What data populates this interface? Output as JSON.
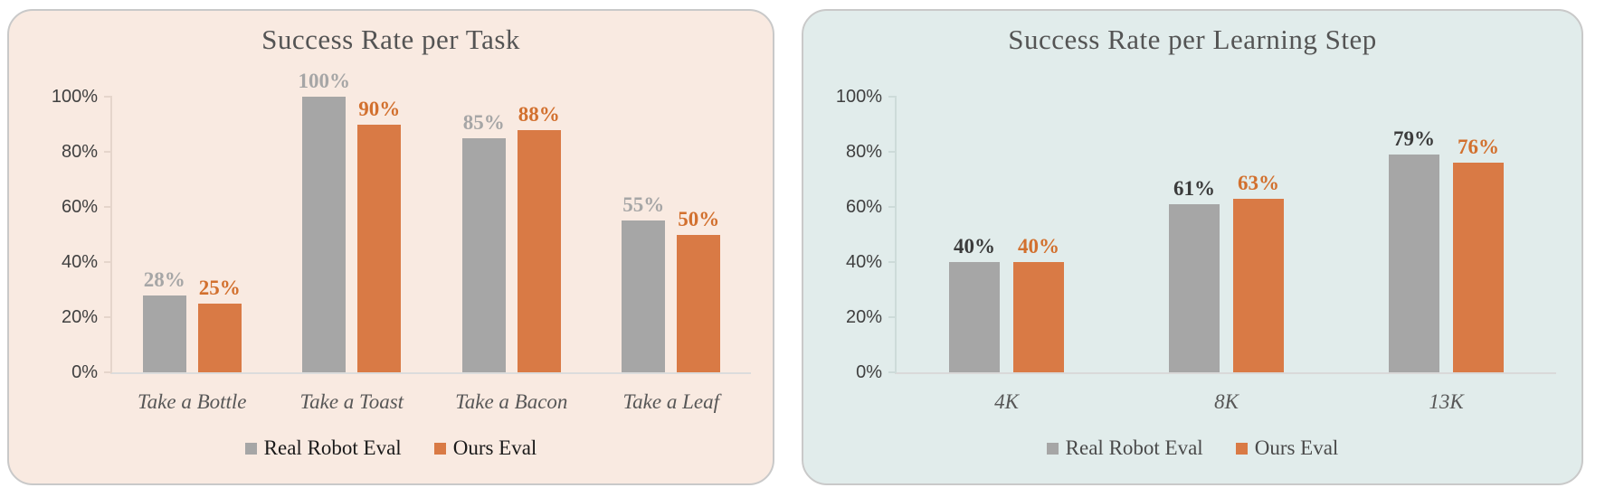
{
  "page": {
    "background": "#ffffff",
    "panel_border_color": "#c9c9c9"
  },
  "chart_data": [
    {
      "type": "bar",
      "title": "Success Rate per Task",
      "panel_bg": "#f9eae1",
      "axis_color": "#e5d5cb",
      "baseline_color": "#dcdcdc",
      "categories": [
        "Take a Bottle",
        "Take a Toast",
        "Take a Bacon",
        "Take a Leaf"
      ],
      "series": [
        {
          "name": "Real Robot Eval",
          "color": "#a6a6a6",
          "label_color": "#a6a6a6",
          "values": [
            28,
            100,
            85,
            55
          ]
        },
        {
          "name": "Ours Eval",
          "color": "#d97a45",
          "label_color": "#d2702e",
          "values": [
            25,
            90,
            88,
            50
          ]
        }
      ],
      "y_tick_labels": [
        "0%",
        "20%",
        "40%",
        "60%",
        "80%",
        "100%"
      ],
      "y_tick_values": [
        0,
        20,
        40,
        60,
        80,
        100
      ],
      "ylim": [
        0,
        100
      ],
      "data_label_suffix": "%",
      "grid": false,
      "legend_position": "bottom",
      "legend_text_color": "#1a1a1a"
    },
    {
      "type": "bar",
      "title": "Success Rate per Learning Step",
      "panel_bg": "#e1eceb",
      "axis_color": "#cddbd9",
      "baseline_color": "#d9d9d9",
      "categories": [
        "4K",
        "8K",
        "13K"
      ],
      "series": [
        {
          "name": "Real Robot Eval",
          "color": "#a6a6a6",
          "label_color": "#3b3b3b",
          "values": [
            40,
            61,
            79
          ]
        },
        {
          "name": "Ours Eval",
          "color": "#d97a45",
          "label_color": "#d2702e",
          "values": [
            40,
            63,
            76
          ]
        }
      ],
      "y_tick_labels": [
        "0%",
        "20%",
        "40%",
        "60%",
        "80%",
        "100%"
      ],
      "y_tick_values": [
        0,
        20,
        40,
        60,
        80,
        100
      ],
      "ylim": [
        0,
        100
      ],
      "data_label_suffix": "%",
      "grid": false,
      "legend_position": "bottom",
      "legend_text_color": "#4a4a4a"
    }
  ]
}
